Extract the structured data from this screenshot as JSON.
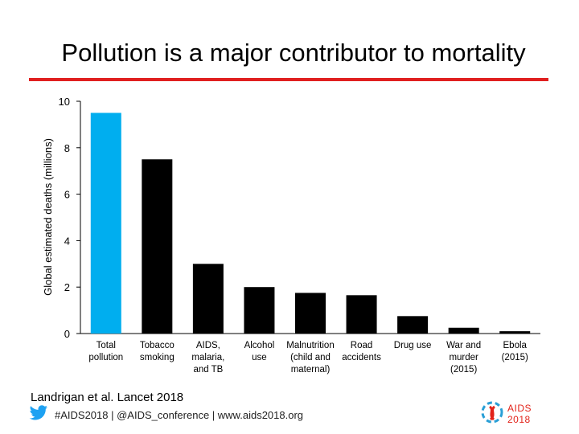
{
  "slide": {
    "title": "Pollution is a major contributor to mortality",
    "citation": "Landrigan et al. Lancet 2018",
    "footer": "#AIDS2018 | @AIDS_conference | www.aids2018.org",
    "logo_text": "AIDS 2018"
  },
  "colors": {
    "title_rule": "#e02020",
    "bar_highlight": "#00aeef",
    "bar_default": "#000000",
    "footer_text": "#222222",
    "twitter": "#1da1f2",
    "logo_red": "#e2231a"
  },
  "icons": [
    "twitter-bird-icon",
    "aids2018-logo-icon"
  ],
  "chart_data": {
    "type": "bar",
    "ylabel": "Global estimated deaths (millions)",
    "ylim": [
      0,
      10
    ],
    "yticks": [
      0,
      2,
      4,
      6,
      8,
      10
    ],
    "grid": false,
    "categories": [
      "Total\npollution",
      "Tobacco\nsmoking",
      "AIDS,\nmalaria,\nand TB",
      "Alcohol\nuse",
      "Malnutrition\n(child and\nmaternal)",
      "Road\naccidents",
      "Drug use",
      "War and\nmurder\n(2015)",
      "Ebola\n(2015)"
    ],
    "values": [
      9.5,
      7.5,
      3.0,
      2.0,
      1.75,
      1.65,
      0.75,
      0.25,
      0.1
    ],
    "highlight_index": 0
  }
}
